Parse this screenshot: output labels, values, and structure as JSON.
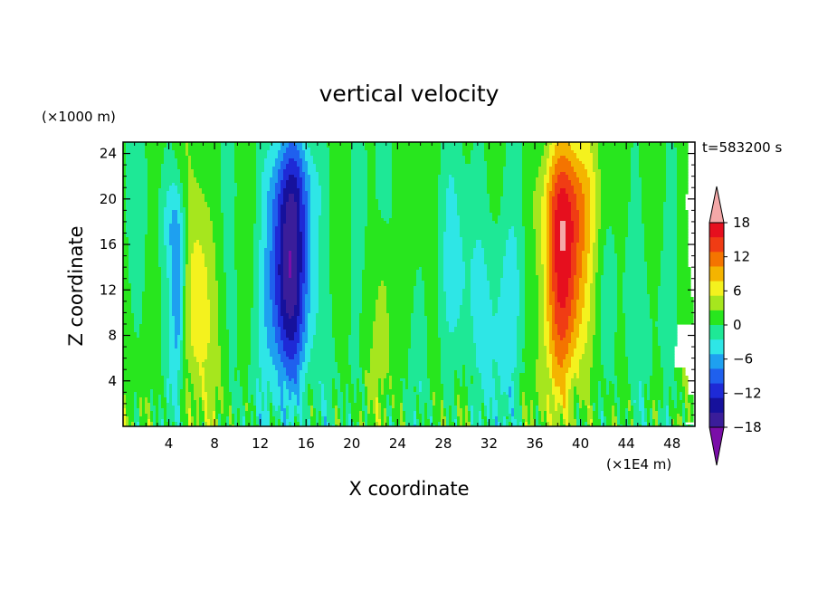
{
  "chart_data": {
    "type": "heatmap",
    "title": "vertical velocity",
    "xlabel": "X coordinate",
    "ylabel": "Z coordinate",
    "x_unit": "(×1E4 m)",
    "y_unit": "(×1000 m)",
    "time_label": "t=583200 s",
    "xlim": [
      0,
      50
    ],
    "ylim": [
      0,
      25
    ],
    "x_ticks": [
      4,
      8,
      12,
      16,
      20,
      24,
      28,
      32,
      36,
      40,
      44,
      48
    ],
    "y_ticks": [
      4,
      8,
      12,
      16,
      20,
      24
    ],
    "colorbar": {
      "levels": [
        -21,
        -18,
        -15,
        -12,
        -9,
        -6,
        -3,
        0,
        3,
        6,
        9,
        12,
        15,
        18,
        21
      ],
      "tick_labels": [
        18,
        12,
        6,
        0,
        -6,
        -12,
        -18
      ],
      "colors": [
        "#7a0ea8",
        "#3a1d9a",
        "#16119c",
        "#1e2ad6",
        "#1f60ee",
        "#1ea0f0",
        "#2ee6e6",
        "#1ee896",
        "#28e61e",
        "#a6e61e",
        "#f4f21e",
        "#f4b400",
        "#f47400",
        "#f03c14",
        "#e60f1e",
        "#f4a8a8"
      ],
      "extend": "both"
    },
    "features": [
      {
        "x": 4.8,
        "z": 11,
        "peak": -14,
        "type": "downdraft"
      },
      {
        "x": 6.6,
        "z": 12,
        "peak": 6,
        "type": "updraft"
      },
      {
        "x": 14.5,
        "z": 13,
        "peak": -17,
        "type": "downdraft"
      },
      {
        "x": 38.6,
        "z": 12,
        "peak": 19,
        "type": "updraft"
      }
    ]
  }
}
